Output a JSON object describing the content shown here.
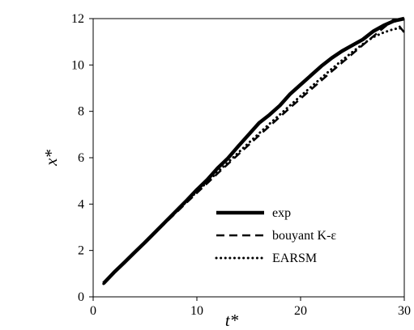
{
  "chart_data": {
    "type": "line",
    "title": "",
    "xlabel": "t*",
    "ylabel": "x*",
    "xlim": [
      0,
      30
    ],
    "ylim": [
      0,
      12
    ],
    "xticks": [
      0,
      10,
      20,
      30
    ],
    "yticks": [
      0,
      2,
      4,
      6,
      8,
      10,
      12
    ],
    "grid": false,
    "legend_position": "bottom-right",
    "series": [
      {
        "name": "exp",
        "style": "solid-thick",
        "color": "#000000",
        "x": [
          1,
          2,
          3,
          4,
          5,
          6,
          7,
          8,
          9,
          10,
          11,
          12,
          13,
          14,
          15,
          16,
          17,
          18,
          19,
          20,
          21,
          22,
          23,
          24,
          25,
          26,
          27,
          28,
          29,
          30
        ],
        "y": [
          0.58,
          1.05,
          1.48,
          1.92,
          2.35,
          2.8,
          3.25,
          3.7,
          4.15,
          4.62,
          5.05,
          5.55,
          5.98,
          6.5,
          7.0,
          7.5,
          7.85,
          8.25,
          8.75,
          9.15,
          9.55,
          9.95,
          10.3,
          10.6,
          10.85,
          11.1,
          11.45,
          11.7,
          11.9,
          12.0
        ]
      },
      {
        "name": "bouyant K-ε",
        "style": "dashed",
        "color": "#000000",
        "x": [
          1,
          2,
          3,
          4,
          5,
          6,
          7,
          8,
          9,
          10,
          11,
          12,
          13,
          14,
          15,
          16,
          17,
          18,
          19,
          20,
          21,
          22,
          23,
          24,
          25,
          26,
          27,
          28,
          29,
          30
        ],
        "y": [
          0.55,
          1.02,
          1.47,
          1.91,
          2.34,
          2.77,
          3.2,
          3.63,
          4.06,
          4.48,
          4.9,
          5.32,
          5.73,
          6.14,
          6.55,
          6.96,
          7.36,
          7.76,
          8.16,
          8.55,
          8.94,
          9.33,
          9.72,
          10.1,
          10.48,
          10.86,
          11.23,
          11.6,
          11.97,
          11.4
        ]
      },
      {
        "name": "EARSM",
        "style": "dotted",
        "color": "#000000",
        "x": [
          1,
          2,
          3,
          4,
          5,
          6,
          7,
          8,
          9,
          10,
          11,
          12,
          13,
          14,
          15,
          16,
          17,
          18,
          19,
          20,
          21,
          22,
          23,
          24,
          25,
          26,
          27,
          28,
          29,
          30
        ],
        "y": [
          0.56,
          1.04,
          1.49,
          1.94,
          2.38,
          2.81,
          3.24,
          3.67,
          4.1,
          4.53,
          4.95,
          5.38,
          5.8,
          6.22,
          6.64,
          7.05,
          7.46,
          7.86,
          8.26,
          8.66,
          9.05,
          9.44,
          9.83,
          10.2,
          10.56,
          10.9,
          11.2,
          11.4,
          11.55,
          11.6
        ]
      }
    ]
  }
}
